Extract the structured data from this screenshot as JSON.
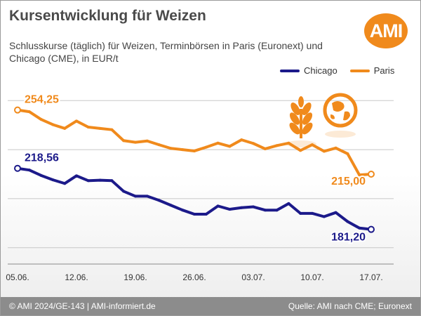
{
  "header": {
    "title": "Kursentwicklung für Weizen",
    "subtitle": "Schlusskurse (täglich) für Weizen, Terminbörsen in Paris (Euronext) und Chicago (CME), in EUR/t",
    "logo_text": "AMI"
  },
  "footer": {
    "left": "© AMI 2024/GE-143 | AMI-informiert.de",
    "right": "Quelle: AMI nach CME; Euronext"
  },
  "colors": {
    "chicago": "#1c1a8a",
    "paris": "#f08a1c",
    "accent": "#f08a1c",
    "footer": "#8c8c8c"
  },
  "icons": [
    "wheat-icon",
    "globe-icon"
  ],
  "chart_data": {
    "type": "line",
    "x": [
      "05.06.",
      "06.06.",
      "07.06.",
      "10.06.",
      "11.06.",
      "12.06.",
      "13.06.",
      "14.06.",
      "17.06.",
      "18.06.",
      "19.06.",
      "20.06.",
      "21.06.",
      "24.06.",
      "25.06.",
      "26.06.",
      "27.06.",
      "28.06.",
      "01.07.",
      "02.07.",
      "03.07.",
      "04.07.",
      "05.07.",
      "08.07.",
      "09.07.",
      "10.07.",
      "11.07.",
      "12.07.",
      "15.07.",
      "16.07.",
      "17.07."
    ],
    "xticks": [
      "05.06.",
      "12.06.",
      "19.06.",
      "26.06.",
      "03.07.",
      "10.07.",
      "17.07."
    ],
    "series": [
      {
        "name": "Chicago",
        "color": "#1c1a8a",
        "values": [
          218.56,
          217.5,
          214.2,
          211.5,
          209.3,
          214.0,
          211.0,
          211.3,
          211.0,
          204.5,
          201.5,
          201.5,
          199.0,
          196.0,
          193.0,
          190.5,
          190.5,
          195.5,
          193.5,
          194.5,
          195.0,
          193.0,
          193.0,
          197.0,
          191.0,
          191.0,
          189.0,
          191.5,
          186.0,
          182.0,
          181.2
        ]
      },
      {
        "name": "Paris",
        "color": "#f08a1c",
        "values": [
          254.25,
          253.2,
          248.5,
          245.3,
          243.0,
          247.5,
          243.8,
          243.0,
          242.2,
          235.5,
          234.5,
          235.3,
          233.0,
          230.8,
          230.0,
          229.2,
          231.5,
          234.0,
          232.0,
          236.0,
          233.8,
          230.5,
          232.5,
          234.0,
          229.5,
          233.0,
          229.0,
          231.0,
          227.5,
          214.5,
          215.0
        ]
      }
    ],
    "data_labels": [
      "254,25",
      "218,56",
      "215,00",
      "181,20"
    ],
    "ylim": [
      160,
      270
    ],
    "grid": true,
    "legend": "top-right",
    "title": "Kursentwicklung für Weizen",
    "xlabel": "",
    "ylabel": ""
  }
}
